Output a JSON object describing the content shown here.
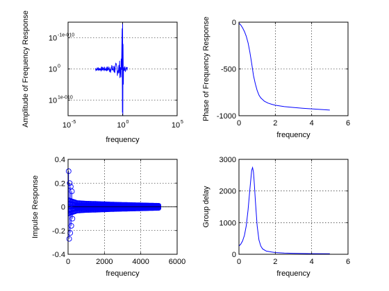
{
  "chart_data": [
    {
      "type": "line",
      "xlabel": "frequency",
      "ylabel": "Amplitude of Frequency Response",
      "xscale": "log",
      "yscale": "log",
      "xlim_exp": [
        -5,
        5
      ],
      "ylim_exp": [
        -15,
        15
      ],
      "xticks": [
        {
          "base": "10",
          "exp": "-5"
        },
        {
          "base": "10",
          "exp": "0"
        },
        {
          "base": "10",
          "exp": "5"
        }
      ],
      "yticks": [
        {
          "base": "10",
          "exp": "1e-010",
          "exp_value": -10
        },
        {
          "base": "10",
          "exp": "0",
          "exp_value": 0
        },
        {
          "base": "10",
          "exp": "-1e-010",
          "exp_value": 10
        }
      ],
      "grid": true,
      "series": [
        {
          "color": "#0000ff",
          "description": "noise near 10^0 between x=10^-2.5 and 10^0, with a vertical spike at x=10^0 spanning the full y range"
        }
      ]
    },
    {
      "type": "line",
      "xlabel": "frequency",
      "ylabel": "Phase of Frequency Response",
      "xlim": [
        0,
        6
      ],
      "ylim": [
        -1000,
        0
      ],
      "xticks": [
        "0",
        "2",
        "4",
        "6"
      ],
      "yticks": [
        "0",
        "-500",
        "-1000"
      ],
      "grid": true,
      "series": [
        {
          "color": "#0000ff",
          "x": [
            0,
            0.1,
            0.2,
            0.3,
            0.4,
            0.5,
            0.6,
            0.7,
            0.8,
            0.9,
            1.0,
            1.1,
            1.2,
            1.4,
            1.6,
            1.8,
            2.0,
            2.5,
            3.0,
            3.5,
            4.0,
            4.5,
            5.0
          ],
          "y": [
            -10,
            -30,
            -60,
            -100,
            -150,
            -220,
            -320,
            -440,
            -570,
            -660,
            -730,
            -780,
            -810,
            -845,
            -865,
            -878,
            -888,
            -903,
            -912,
            -920,
            -927,
            -933,
            -940
          ]
        }
      ]
    },
    {
      "type": "scatter",
      "xlabel": "frequency",
      "ylabel": "Impulse Response",
      "xlim": [
        0,
        6000
      ],
      "ylim": [
        -0.4,
        0.4
      ],
      "xticks": [
        "0",
        "2000",
        "4000",
        "6000"
      ],
      "yticks": [
        "0.4",
        "0.2",
        "0",
        "-0.2",
        "-0.4"
      ],
      "grid": true,
      "series": [
        {
          "color": "#0000ff",
          "marker": "circle",
          "x": [
            30,
            60,
            90,
            120,
            150,
            180,
            210,
            240
          ],
          "y": [
            0.3,
            -0.27,
            0.2,
            -0.22,
            0.17,
            -0.16,
            0.13,
            -0.1
          ],
          "envelope": {
            "x": [
              0,
              200,
              500,
              1000,
              1500,
              2000,
              2500,
              3000,
              3500,
              4000,
              4500,
              5000
            ],
            "amp": [
              0.06,
              0.05,
              0.035,
              0.03,
              0.028,
              0.025,
              0.022,
              0.02,
              0.018,
              0.016,
              0.014,
              0.012
            ]
          }
        }
      ]
    },
    {
      "type": "line",
      "xlabel": "frequency",
      "ylabel": "Group delay",
      "xlim": [
        0,
        6
      ],
      "ylim": [
        0,
        3000
      ],
      "xticks": [
        "0",
        "2",
        "4",
        "6"
      ],
      "yticks": [
        "3000",
        "2000",
        "1000",
        "0"
      ],
      "grid": true,
      "series": [
        {
          "color": "#0000ff",
          "x": [
            0,
            0.1,
            0.2,
            0.3,
            0.4,
            0.5,
            0.6,
            0.7,
            0.75,
            0.8,
            0.85,
            0.9,
            1.0,
            1.1,
            1.2,
            1.3,
            1.5,
            1.8,
            2.0,
            2.5,
            3.0,
            4.0,
            5.0
          ],
          "y": [
            260,
            320,
            420,
            600,
            900,
            1400,
            2050,
            2650,
            2740,
            2600,
            2200,
            1700,
            900,
            450,
            260,
            170,
            100,
            70,
            55,
            40,
            30,
            20,
            15
          ]
        }
      ]
    }
  ]
}
